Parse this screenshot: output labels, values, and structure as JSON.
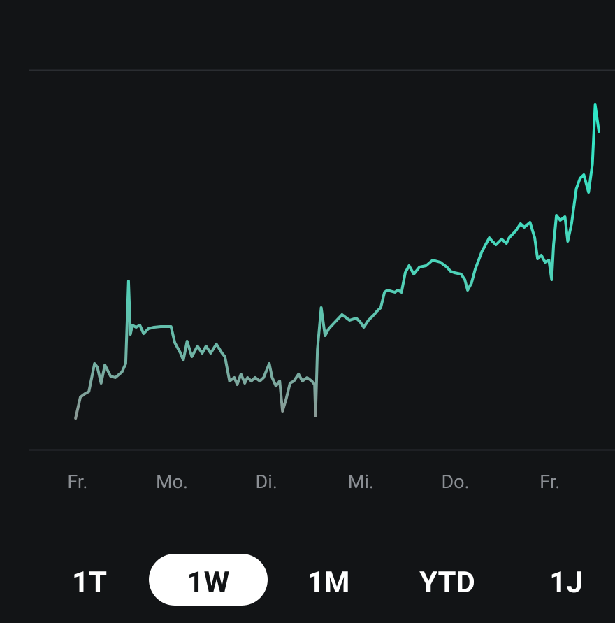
{
  "chart_data": {
    "type": "line",
    "color": "#35e6c6",
    "x": [
      -0.02,
      0.03,
      0.08,
      0.12,
      0.18,
      0.21,
      0.25,
      0.29,
      0.35,
      0.4,
      0.47,
      0.51,
      0.54,
      0.56,
      0.58,
      0.62,
      0.66,
      0.7,
      0.75,
      0.81,
      0.88,
      0.99,
      1.03,
      1.09,
      1.12,
      1.16,
      1.21,
      1.27,
      1.32,
      1.36,
      1.41,
      1.47,
      1.53,
      1.56,
      1.61,
      1.66,
      1.69,
      1.73,
      1.77,
      1.8,
      1.84,
      1.88,
      1.93,
      1.97,
      2.03,
      2.06,
      2.1,
      2.14,
      2.17,
      2.21,
      2.25,
      2.29,
      2.34,
      2.38,
      2.43,
      2.48,
      2.51,
      2.52,
      2.54,
      2.58,
      2.62,
      2.66,
      2.73,
      2.8,
      2.88,
      2.95,
      2.99,
      3.03,
      3.08,
      3.14,
      3.17,
      3.21,
      3.25,
      3.28,
      3.36,
      3.39,
      3.43,
      3.47,
      3.51,
      3.56,
      3.62,
      3.69,
      3.76,
      3.84,
      3.91,
      3.95,
      3.99,
      4.06,
      4.1,
      4.13,
      4.17,
      4.21,
      4.28,
      4.36,
      4.39,
      4.43,
      4.49,
      4.54,
      4.57,
      4.64,
      4.69,
      4.73,
      4.79,
      4.84,
      4.87,
      4.91,
      4.95,
      4.99,
      5.02,
      5.04,
      5.07,
      5.11,
      5.16,
      5.19,
      5.23,
      5.28,
      5.32,
      5.36,
      5.41,
      5.45,
      5.48,
      5.52
    ],
    "values": [
      45,
      75,
      80,
      83,
      123,
      118,
      95,
      121,
      105,
      103,
      111,
      123,
      241,
      165,
      178,
      175,
      178,
      166,
      173,
      175,
      176,
      176,
      153,
      138,
      128,
      155,
      133,
      148,
      138,
      148,
      138,
      151,
      138,
      133,
      98,
      103,
      93,
      108,
      95,
      103,
      98,
      103,
      98,
      103,
      123,
      103,
      91,
      98,
      55,
      73,
      95,
      98,
      108,
      98,
      103,
      98,
      93,
      48,
      143,
      203,
      163,
      173,
      183,
      193,
      185,
      188,
      183,
      175,
      185,
      193,
      198,
      203,
      225,
      228,
      225,
      228,
      225,
      253,
      263,
      251,
      261,
      263,
      271,
      268,
      261,
      255,
      253,
      251,
      243,
      228,
      238,
      258,
      283,
      303,
      298,
      293,
      301,
      295,
      303,
      313,
      323,
      318,
      325,
      303,
      273,
      278,
      268,
      271,
      243,
      293,
      335,
      328,
      333,
      298,
      323,
      373,
      388,
      393,
      368,
      408,
      493,
      455
    ],
    "xlim": [
      -0.51,
      5.69
    ],
    "ylim": [
      0,
      543
    ],
    "xticks": [
      {
        "value": 0,
        "label": "Fr."
      },
      {
        "value": 1,
        "label": "Mo."
      },
      {
        "value": 2,
        "label": "Di."
      },
      {
        "value": 3,
        "label": "Mi."
      },
      {
        "value": 4,
        "label": "Do."
      },
      {
        "value": 5,
        "label": "Fr."
      }
    ]
  },
  "range_buttons": {
    "items": [
      "1T",
      "1W",
      "1M",
      "YTD",
      "1J"
    ],
    "selected": 1
  }
}
